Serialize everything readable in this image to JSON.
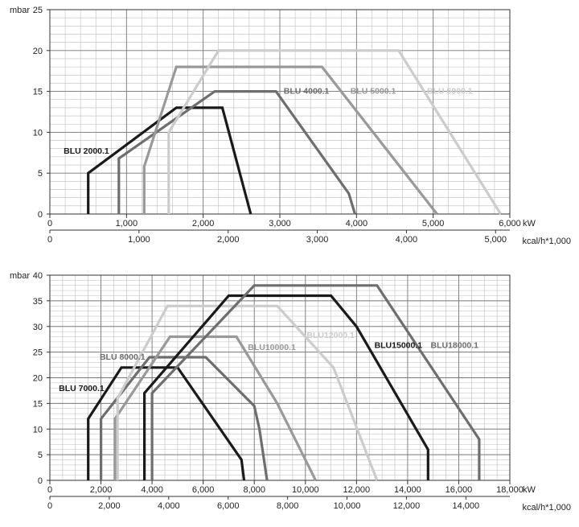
{
  "chart_data": [
    {
      "type": "line",
      "ylabel": "mbar",
      "xlabel": "kW",
      "xlabel2": "kcal/h*1,000",
      "xlim": [
        0,
        6000
      ],
      "ylim": [
        0,
        25
      ],
      "x_ticks": [
        "0",
        "1,000",
        "2,000",
        "3,000",
        "4,000",
        "5,000",
        "6,000"
      ],
      "x_ticks_values": [
        0,
        1000,
        2000,
        3000,
        4000,
        5000,
        6000
      ],
      "x2_ticks": [
        "0",
        "1,000",
        "2,000",
        "3,000",
        "4,000",
        "5,000"
      ],
      "x2_ticks_values": [
        0,
        1000,
        2000,
        3000,
        4000,
        5000
      ],
      "x2_per_x": 0.86,
      "y_ticks": [
        "0",
        "5",
        "10",
        "15",
        "20",
        "25"
      ],
      "y_ticks_values": [
        0,
        5,
        10,
        15,
        20,
        25
      ],
      "grid": true,
      "series": [
        {
          "name": "BLU 2000.1",
          "color": "#1a1a1a",
          "points": [
            [
              500,
              0
            ],
            [
              500,
              5
            ],
            [
              1650,
              13
            ],
            [
              2250,
              13
            ],
            [
              2620,
              0
            ]
          ]
        },
        {
          "name": "BLU 4000.1",
          "color": "#6e6e6e",
          "points": [
            [
              900,
              0
            ],
            [
              900,
              6.8
            ],
            [
              2150,
              15
            ],
            [
              2950,
              15
            ],
            [
              3900,
              2.5
            ],
            [
              3980,
              0
            ]
          ]
        },
        {
          "name": "BLU 5000.1",
          "color": "#999999",
          "points": [
            [
              1230,
              0
            ],
            [
              1230,
              5.8
            ],
            [
              1650,
              18
            ],
            [
              3550,
              18
            ],
            [
              5050,
              0
            ]
          ]
        },
        {
          "name": "BLU 6000.1",
          "color": "#cccccc",
          "points": [
            [
              1550,
              0
            ],
            [
              1550,
              10
            ],
            [
              2200,
              20
            ],
            [
              4550,
              20
            ],
            [
              5880,
              0
            ]
          ]
        }
      ],
      "labels": [
        {
          "text": "BLU 2000.1",
          "series": "BLU 2000.1",
          "x": 180,
          "y": 7.4
        },
        {
          "text": "BLU 4000.1",
          "series": "BLU 4000.1",
          "x": 3050,
          "y": 14.7
        },
        {
          "text": "BLU 5000.1",
          "series": "BLU 5000.1",
          "x": 3920,
          "y": 14.7
        },
        {
          "text": "BLU 6000.1",
          "series": "BLU 6000.1",
          "x": 4920,
          "y": 14.7
        }
      ]
    },
    {
      "type": "line",
      "ylabel": "mbar",
      "xlabel": "kW",
      "xlabel2": "kcal/h*1,000",
      "xlim": [
        0,
        18000
      ],
      "ylim": [
        0,
        40
      ],
      "x_ticks": [
        "0",
        "2,000",
        "4,000",
        "6,000",
        "8,000",
        "10,000",
        "12,000",
        "14,000",
        "16,000",
        "18,000"
      ],
      "x_ticks_values": [
        0,
        2000,
        4000,
        6000,
        8000,
        10000,
        12000,
        14000,
        16000,
        18000
      ],
      "x2_ticks": [
        "0",
        "2,000",
        "4,000",
        "6,000",
        "8,000",
        "10,000",
        "12,000",
        "14,000"
      ],
      "x2_ticks_values": [
        0,
        2000,
        4000,
        6000,
        8000,
        10000,
        12000,
        14000
      ],
      "x2_per_x": 0.86,
      "y_ticks": [
        "0",
        "5",
        "10",
        "15",
        "20",
        "25",
        "30",
        "35",
        "40"
      ],
      "y_ticks_values": [
        0,
        5,
        10,
        15,
        20,
        25,
        30,
        35,
        40
      ],
      "grid": true,
      "series": [
        {
          "name": "BLU 7000.1",
          "color": "#1a1a1a",
          "points": [
            [
              1500,
              0
            ],
            [
              1500,
              12
            ],
            [
              2800,
              22
            ],
            [
              5000,
              22
            ],
            [
              7500,
              4
            ],
            [
              7600,
              0
            ]
          ]
        },
        {
          "name": "BLU 8000.1",
          "color": "#6e6e6e",
          "points": [
            [
              2000,
              0
            ],
            [
              2000,
              12
            ],
            [
              3900,
              24
            ],
            [
              6100,
              24
            ],
            [
              8000,
              14.5
            ],
            [
              8200,
              10
            ],
            [
              8500,
              0
            ]
          ]
        },
        {
          "name": "BLU10000.1",
          "color": "#999999",
          "points": [
            [
              2550,
              0
            ],
            [
              2550,
              12
            ],
            [
              4700,
              28
            ],
            [
              7300,
              28
            ],
            [
              8900,
              15
            ],
            [
              10400,
              0
            ]
          ]
        },
        {
          "name": "BLU12000.1",
          "color": "#cccccc",
          "points": [
            [
              2650,
              0
            ],
            [
              2650,
              16
            ],
            [
              4600,
              34
            ],
            [
              8900,
              34
            ],
            [
              11100,
              22
            ],
            [
              12800,
              0
            ]
          ]
        },
        {
          "name": "BLU15000.1",
          "color": "#1a1a1a",
          "points": [
            [
              3700,
              0
            ],
            [
              3700,
              17
            ],
            [
              7000,
              36
            ],
            [
              11000,
              36
            ],
            [
              12000,
              30
            ],
            [
              14800,
              6
            ],
            [
              14800,
              0
            ]
          ]
        },
        {
          "name": "BLU18000.1",
          "color": "#6e6e6e",
          "points": [
            [
              4000,
              0
            ],
            [
              4000,
              17
            ],
            [
              8000,
              38
            ],
            [
              12800,
              38
            ],
            [
              16800,
              8
            ],
            [
              16800,
              0
            ]
          ]
        }
      ],
      "labels": [
        {
          "text": "BLU 7000.1",
          "series": "BLU 7000.1",
          "x": 350,
          "y": 17.4
        },
        {
          "text": "BLU 8000.1",
          "series": "BLU 8000.1",
          "x": 1950,
          "y": 23.5
        },
        {
          "text": "BLU10000.1",
          "series": "BLU10000.1",
          "x": 7750,
          "y": 25.4
        },
        {
          "text": "BLU12000.1",
          "series": "BLU12000.1",
          "x": 10050,
          "y": 27.8
        },
        {
          "text": "BLU15000.1",
          "series": "BLU15000.1",
          "x": 12700,
          "y": 25.8
        },
        {
          "text": "BLU18000.1",
          "series": "BLU18000.1",
          "x": 14900,
          "y": 25.8
        }
      ]
    }
  ]
}
